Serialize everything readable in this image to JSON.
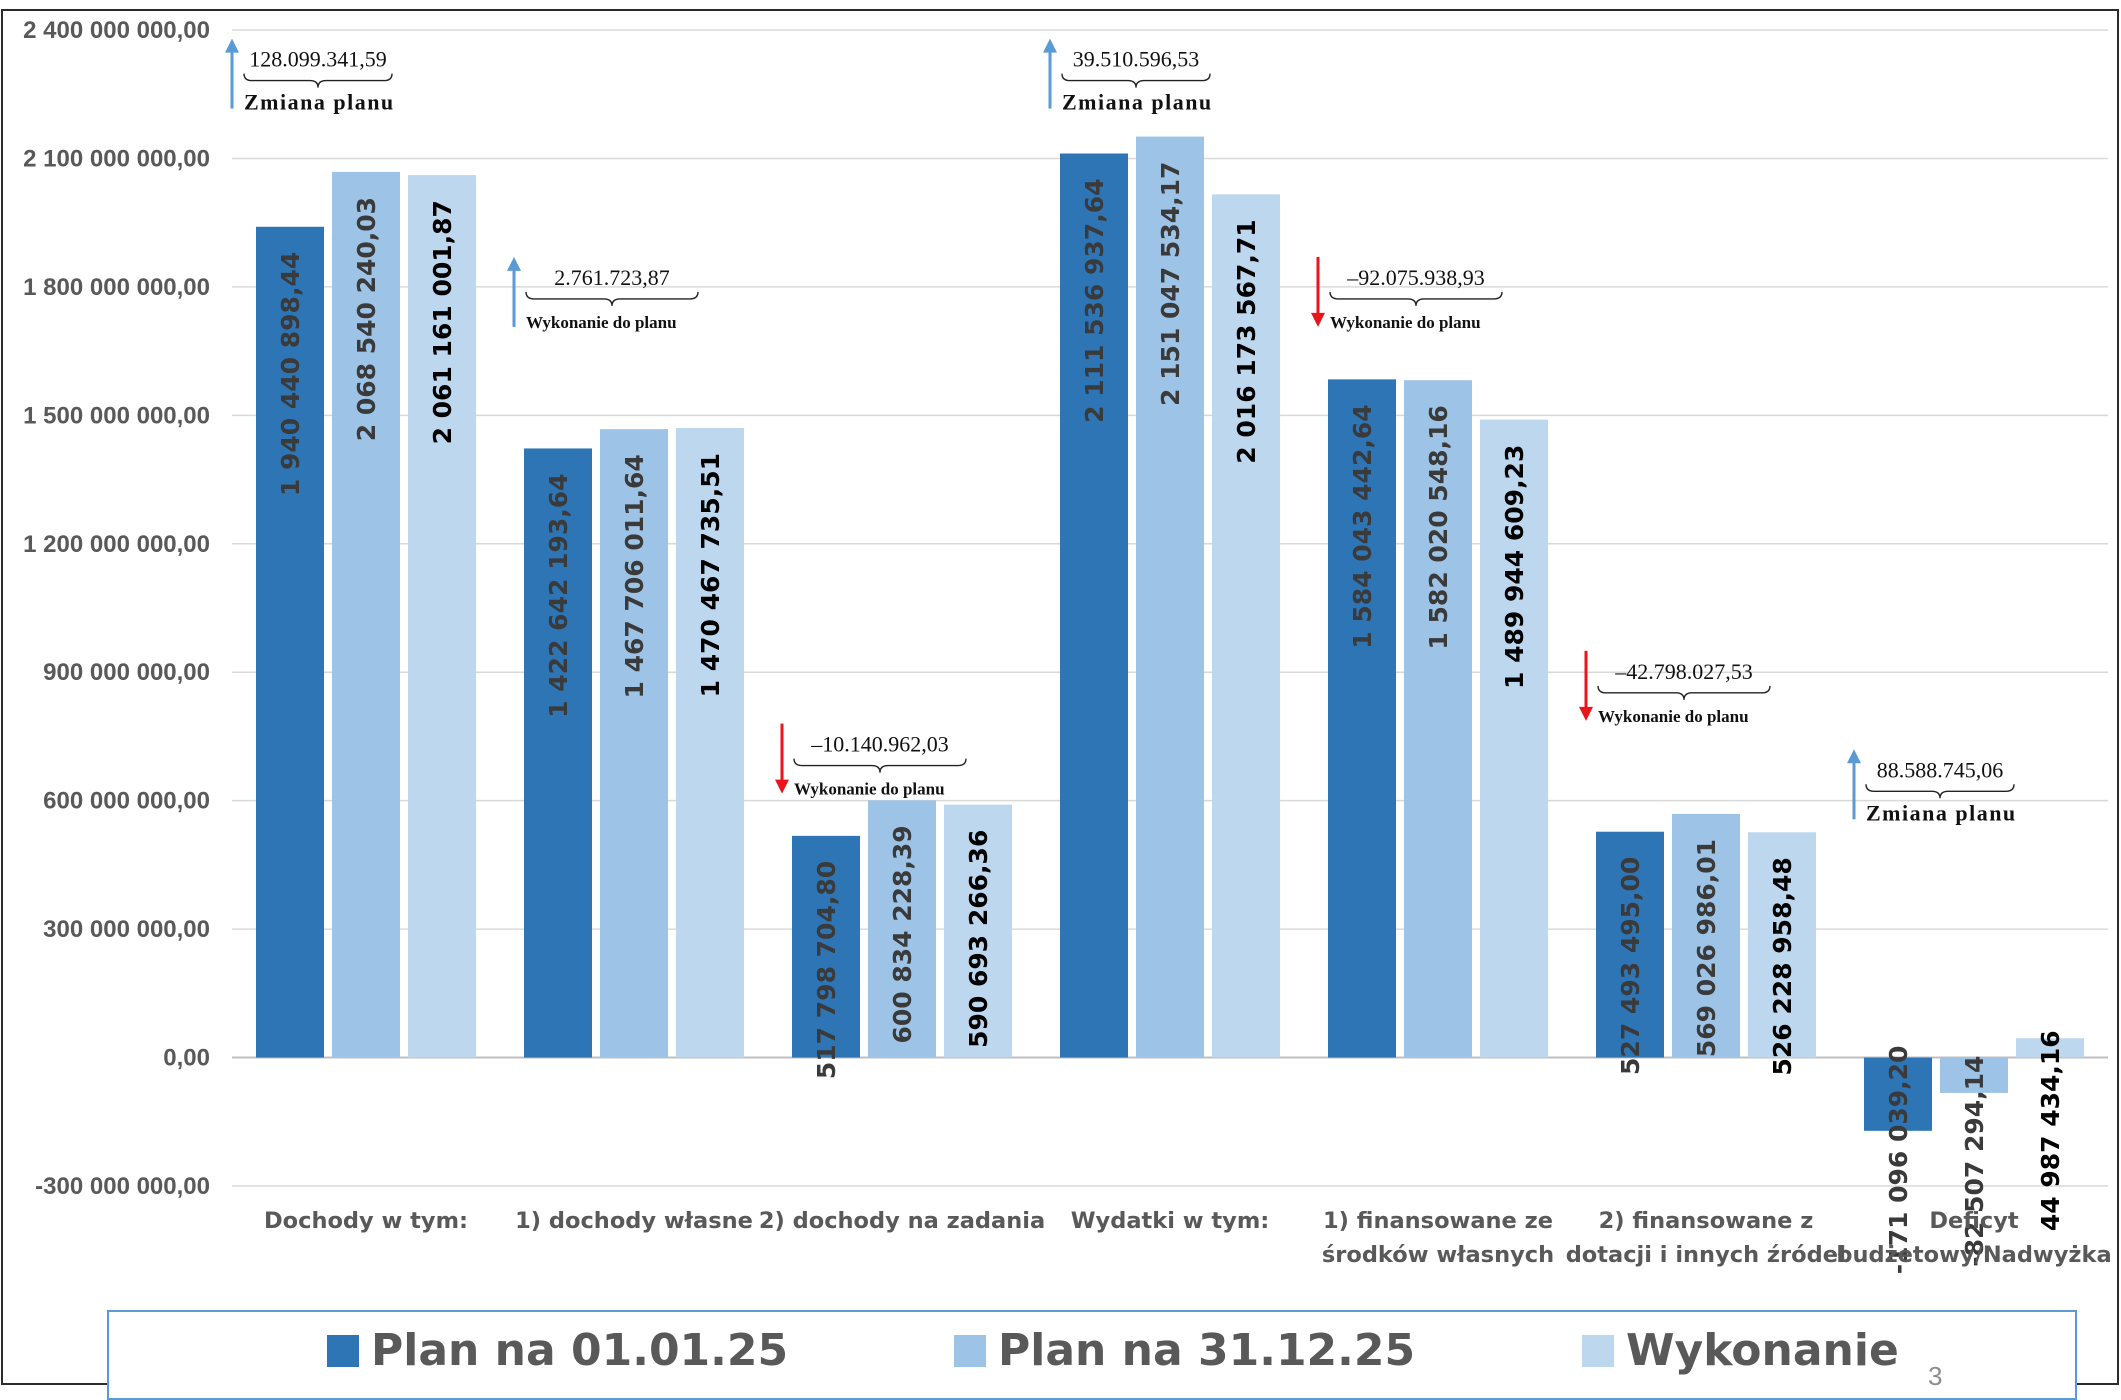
{
  "chart_data": {
    "type": "bar",
    "title": "",
    "xlabel": "",
    "ylabel": "",
    "ylim": [
      -300000000,
      2400000000
    ],
    "grid": true,
    "legend_position": "bottom",
    "categories": [
      "Dochody w tym:",
      "1) dochody własne",
      "2) dochody na zadania",
      "Wydatki w tym:",
      "1) finansowane ze środków własnych",
      "2) finansowane z dotacji i innych źródeł",
      "Deficyt budżetowy/Nadwyżka"
    ],
    "category_lines": [
      [
        "Dochody w tym:"
      ],
      [
        "1) dochody własne"
      ],
      [
        "2) dochody na zadania"
      ],
      [
        "Wydatki w tym:"
      ],
      [
        "1) finansowane ze",
        "środków własnych"
      ],
      [
        "2) finansowane z",
        "dotacji i innych źródeł"
      ],
      [
        "Deficyt",
        "budżetowy/Nadwyżka"
      ]
    ],
    "y_ticks": [
      {
        "value": 2400000000,
        "label": "2 400 000 000,00"
      },
      {
        "value": 2100000000,
        "label": "2 100 000 000,00"
      },
      {
        "value": 1800000000,
        "label": "1 800 000 000,00"
      },
      {
        "value": 1500000000,
        "label": "1 500 000 000,00"
      },
      {
        "value": 1200000000,
        "label": "1 200 000 000,00"
      },
      {
        "value": 900000000,
        "label": "900 000 000,00"
      },
      {
        "value": 600000000,
        "label": "600 000 000,00"
      },
      {
        "value": 300000000,
        "label": "300 000 000,00"
      },
      {
        "value": 0,
        "label": "0,00"
      },
      {
        "value": -300000000,
        "label": "-300 000 000,00"
      }
    ],
    "series": [
      {
        "name": "Plan na 01.01.25",
        "color": "#2e75b6",
        "label_color": "#3a3a3a",
        "values": [
          1940440898.44,
          1422642193.64,
          517798704.8,
          2111536937.64,
          1584043442.64,
          527493495.0,
          -171096039.2
        ],
        "labels": [
          "1 940 440 898,44",
          "1 422 642 193,64",
          "517 798 704,80",
          "2 111 536 937,64",
          "1 584 043 442,64",
          "527 493 495,00",
          "-171 096 039,20"
        ]
      },
      {
        "name": "Plan na 31.12.25",
        "color": "#9dc3e6",
        "label_color": "#3a3a3a",
        "values": [
          2068540240.03,
          1467706011.64,
          600834228.39,
          2151047534.17,
          1582020548.16,
          569026986.01,
          -82507294.14
        ],
        "labels": [
          "2 068 540 240,03",
          "1 467 706 011,64",
          "600 834 228,39",
          "2 151 047 534,17",
          "1 582 020 548,16",
          "569 026 986,01",
          "-82 507 294,14"
        ]
      },
      {
        "name": "Wykonanie",
        "color": "#bdd7ee",
        "label_color": "#000000",
        "values": [
          2061161001.87,
          1470467735.51,
          590693266.36,
          2016173567.71,
          1489944609.23,
          526228958.48,
          44987434.16
        ],
        "labels": [
          "2 061 161 001,87",
          "1 470 467 735,51",
          "590 693 266,36",
          "2 016 173 567,71",
          "1 489 944 609,23",
          "526 228 958,48",
          "44 987 434,16"
        ]
      }
    ],
    "annotations": [
      {
        "category_index": 0,
        "direction": "up",
        "color": "#5b9bd5",
        "value": "128.099.341,59",
        "label": "Zmiana planu",
        "anchor_value": 2380000000
      },
      {
        "category_index": 1,
        "direction": "up",
        "color": "#5b9bd5",
        "value": "2.761.723,87",
        "label": "Wykonanie do planu",
        "anchor_value": 1870000000
      },
      {
        "category_index": 2,
        "direction": "down",
        "color": "#e8161b",
        "value": "–10.140.962,03",
        "label": "Wykonanie do planu",
        "anchor_value": 780000000
      },
      {
        "category_index": 3,
        "direction": "up",
        "color": "#5b9bd5",
        "value": "39.510.596,53",
        "label": "Zmiana planu",
        "anchor_value": 2380000000
      },
      {
        "category_index": 4,
        "direction": "down",
        "color": "#e8161b",
        "value": "–92.075.938,93",
        "label": "Wykonanie do planu",
        "anchor_value": 1870000000
      },
      {
        "category_index": 5,
        "direction": "down",
        "color": "#e8161b",
        "value": "–42.798.027,53",
        "label": "Wykonanie do planu",
        "anchor_value": 950000000
      },
      {
        "category_index": 6,
        "direction": "up",
        "color": "#5b9bd5",
        "value": "88.588.745,06",
        "label": "Zmiana planu",
        "anchor_value": 720000000
      }
    ]
  },
  "legend": {
    "items": [
      {
        "label": "Plan na 01.01.25",
        "color": "#2e75b6"
      },
      {
        "label": "Plan na 31.12.25",
        "color": "#9dc3e6"
      },
      {
        "label": "Wykonanie",
        "color": "#bdd7ee"
      }
    ]
  },
  "page_number": "3"
}
